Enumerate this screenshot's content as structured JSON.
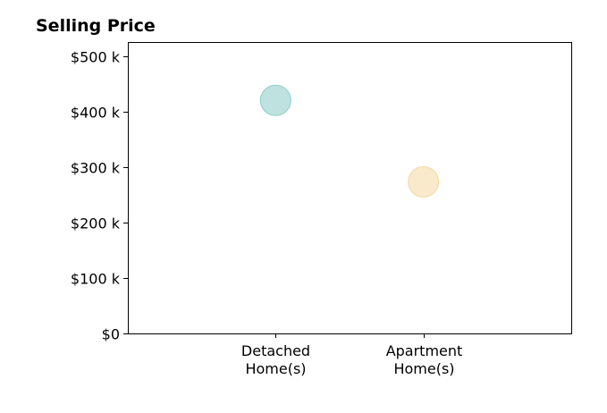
{
  "chart_data": {
    "type": "scatter",
    "title": "Selling Price",
    "xlabel": "",
    "ylabel": "",
    "categories": [
      [
        "Detached",
        "Home(s)"
      ],
      [
        "Apartment",
        "Home(s)"
      ]
    ],
    "series": [
      {
        "values": [
          420000,
          273000
        ]
      }
    ],
    "point_colors": [
      "#a8d8d4",
      "#f6e3b9"
    ],
    "point_edge_colors": [
      "#8ecdc8",
      "#f1d9a6"
    ],
    "ylim": [
      0,
      525000
    ],
    "yticks": [
      0,
      100000,
      200000,
      300000,
      400000,
      500000
    ],
    "ytick_labels": [
      "$0",
      "$100 k",
      "$200 k",
      "$300 k",
      "$400 k",
      "$500 k"
    ],
    "grid": false,
    "legend": "none"
  }
}
